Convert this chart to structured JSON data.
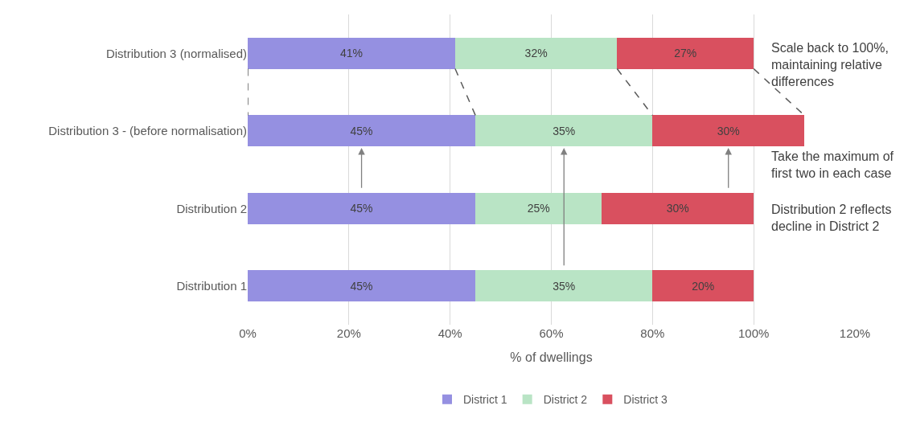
{
  "chart_data": {
    "type": "bar",
    "orientation": "horizontal",
    "stacked": true,
    "categories": [
      "Distribution 3 (normalised)",
      "Distribution 3 - (before normalisation)",
      "Distribution 2",
      "Distribution 1"
    ],
    "series": [
      {
        "name": "District 1",
        "color": "#9590e1",
        "values": [
          41,
          45,
          45,
          45
        ],
        "value_labels": [
          "41%",
          "45%",
          "45%",
          "45%"
        ]
      },
      {
        "name": "District 2",
        "color": "#b9e4c5",
        "values": [
          32,
          35,
          25,
          35
        ],
        "value_labels": [
          "32%",
          "35%",
          "25%",
          "35%"
        ]
      },
      {
        "name": "District 3",
        "color": "#d9505f",
        "values": [
          27,
          30,
          30,
          20
        ],
        "value_labels": [
          "27%",
          "30%",
          "30%",
          "20%"
        ]
      }
    ],
    "xlabel": "% of dwellings",
    "xlim": [
      0,
      120
    ],
    "xticks": [
      {
        "value": 0,
        "label": "0%"
      },
      {
        "value": 20,
        "label": "20%"
      },
      {
        "value": 40,
        "label": "40%"
      },
      {
        "value": 60,
        "label": "60%"
      },
      {
        "value": 80,
        "label": "80%"
      },
      {
        "value": 100,
        "label": "100%"
      },
      {
        "value": 120,
        "label": "120%"
      }
    ],
    "grid": "x",
    "legend": "bottom",
    "annotations": [
      "Scale back to 100%,\nmaintaining relative\ndifferences",
      "Take the maximum of\nfirst two in each case",
      "Distribution 2 reflects\ndecline in District 2"
    ]
  }
}
